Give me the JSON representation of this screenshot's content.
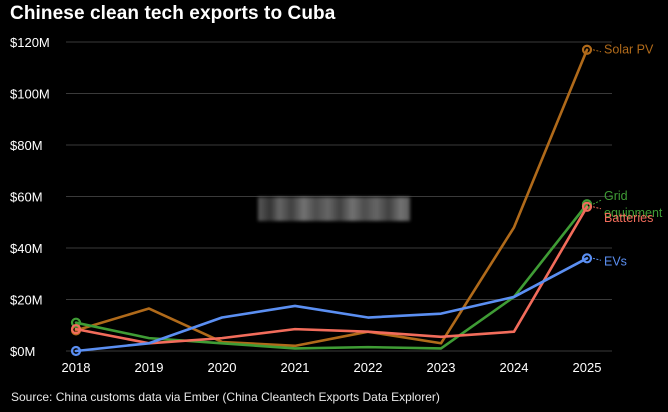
{
  "page": {
    "title": "Chinese clean tech exports to Cuba",
    "source": "Source: China customs data via Ember (China Cleantech Exports Data Explorer)"
  },
  "chart_data": {
    "type": "line",
    "title": "Chinese clean tech exports to Cuba",
    "xlabel": "",
    "ylabel": "",
    "x": [
      "2018",
      "2019",
      "2020",
      "2021",
      "2022",
      "2023",
      "2024",
      "2025"
    ],
    "ylim": [
      0,
      120
    ],
    "yticks": [
      0,
      20,
      40,
      60,
      80,
      100,
      120
    ],
    "ytick_labels": [
      "$0M",
      "$20M",
      "$40M",
      "$60M",
      "$80M",
      "$100M",
      "$120M"
    ],
    "grid": true,
    "series": [
      {
        "name": "Solar PV",
        "label_lines": [
          "Solar PV"
        ],
        "color": "#b06a1a",
        "values": [
          8,
          16.5,
          3.5,
          2,
          7.5,
          3,
          48,
          117
        ]
      },
      {
        "name": "Grid equipment",
        "label_lines": [
          "Grid",
          "equipment"
        ],
        "color": "#3f9c35",
        "values": [
          11,
          5,
          3,
          1,
          1.5,
          1,
          21,
          57
        ]
      },
      {
        "name": "Batteries",
        "label_lines": [
          "Batteries"
        ],
        "color": "#f26c5b",
        "values": [
          8.5,
          3,
          5,
          8.5,
          7.5,
          5.5,
          7.5,
          56
        ]
      },
      {
        "name": "EVs",
        "label_lines": [
          "EVs"
        ],
        "color": "#5b8ff2",
        "values": [
          0,
          3,
          13,
          17.5,
          13,
          14.5,
          21,
          36
        ]
      }
    ]
  }
}
